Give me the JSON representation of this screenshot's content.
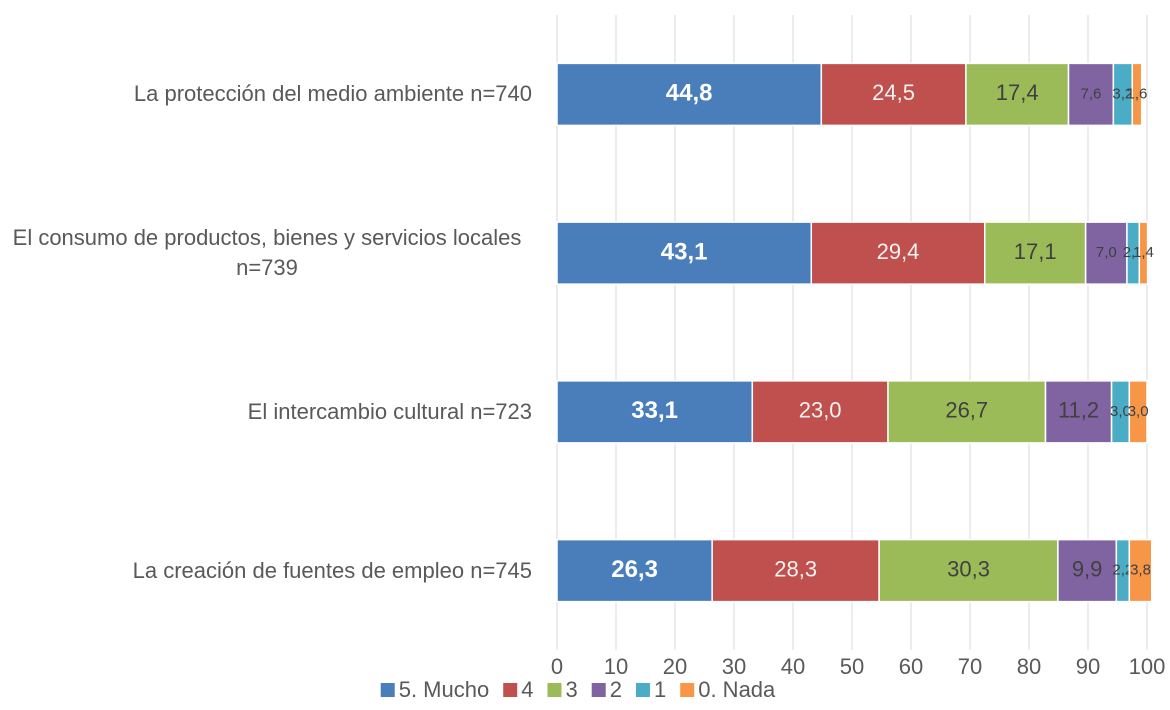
{
  "chart_data": {
    "type": "stacked-bar-horizontal",
    "categories": [
      "La protección del medio ambiente n=740",
      "El consumo de productos, bienes y servicios locales n=739",
      "El intercambio cultural n=723",
      "La creación de fuentes de empleo n=745"
    ],
    "series": [
      {
        "name": "5. Mucho",
        "color": "#4a7ebb",
        "values": [
          44.8,
          43.1,
          33.1,
          26.3
        ],
        "value_labels": [
          "44,8",
          "43,1",
          "33,1",
          "26,3"
        ]
      },
      {
        "name": "4",
        "color": "#c0504d",
        "values": [
          24.5,
          29.4,
          23.0,
          28.3
        ],
        "value_labels": [
          "24,5",
          "29,4",
          "23,0",
          "28,3"
        ]
      },
      {
        "name": "3",
        "color": "#9bbb59",
        "values": [
          17.4,
          17.1,
          26.7,
          30.3
        ],
        "value_labels": [
          "17,4",
          "17,1",
          "26,7",
          "30,3"
        ]
      },
      {
        "name": "2",
        "color": "#8064a2",
        "values": [
          7.6,
          7.0,
          11.2,
          9.9
        ],
        "value_labels": [
          "7,6",
          "7,0",
          "11,2",
          "9,9"
        ]
      },
      {
        "name": "1",
        "color": "#4bacc6",
        "values": [
          3.2,
          2.1,
          3.0,
          2.2
        ],
        "value_labels": [
          "3,2",
          "2,1",
          "3,0",
          "2,2"
        ]
      },
      {
        "name": "0. Nada",
        "color": "#f79646",
        "values": [
          1.6,
          1.4,
          3.0,
          3.8
        ],
        "value_labels": [
          "1,6",
          "1,4",
          "3,0",
          "3,8"
        ]
      }
    ],
    "xlim": [
      0,
      100
    ],
    "xticks": [
      0,
      10,
      20,
      30,
      40,
      50,
      60,
      70,
      80,
      90,
      100
    ],
    "grid": true,
    "legend": "bottom"
  }
}
